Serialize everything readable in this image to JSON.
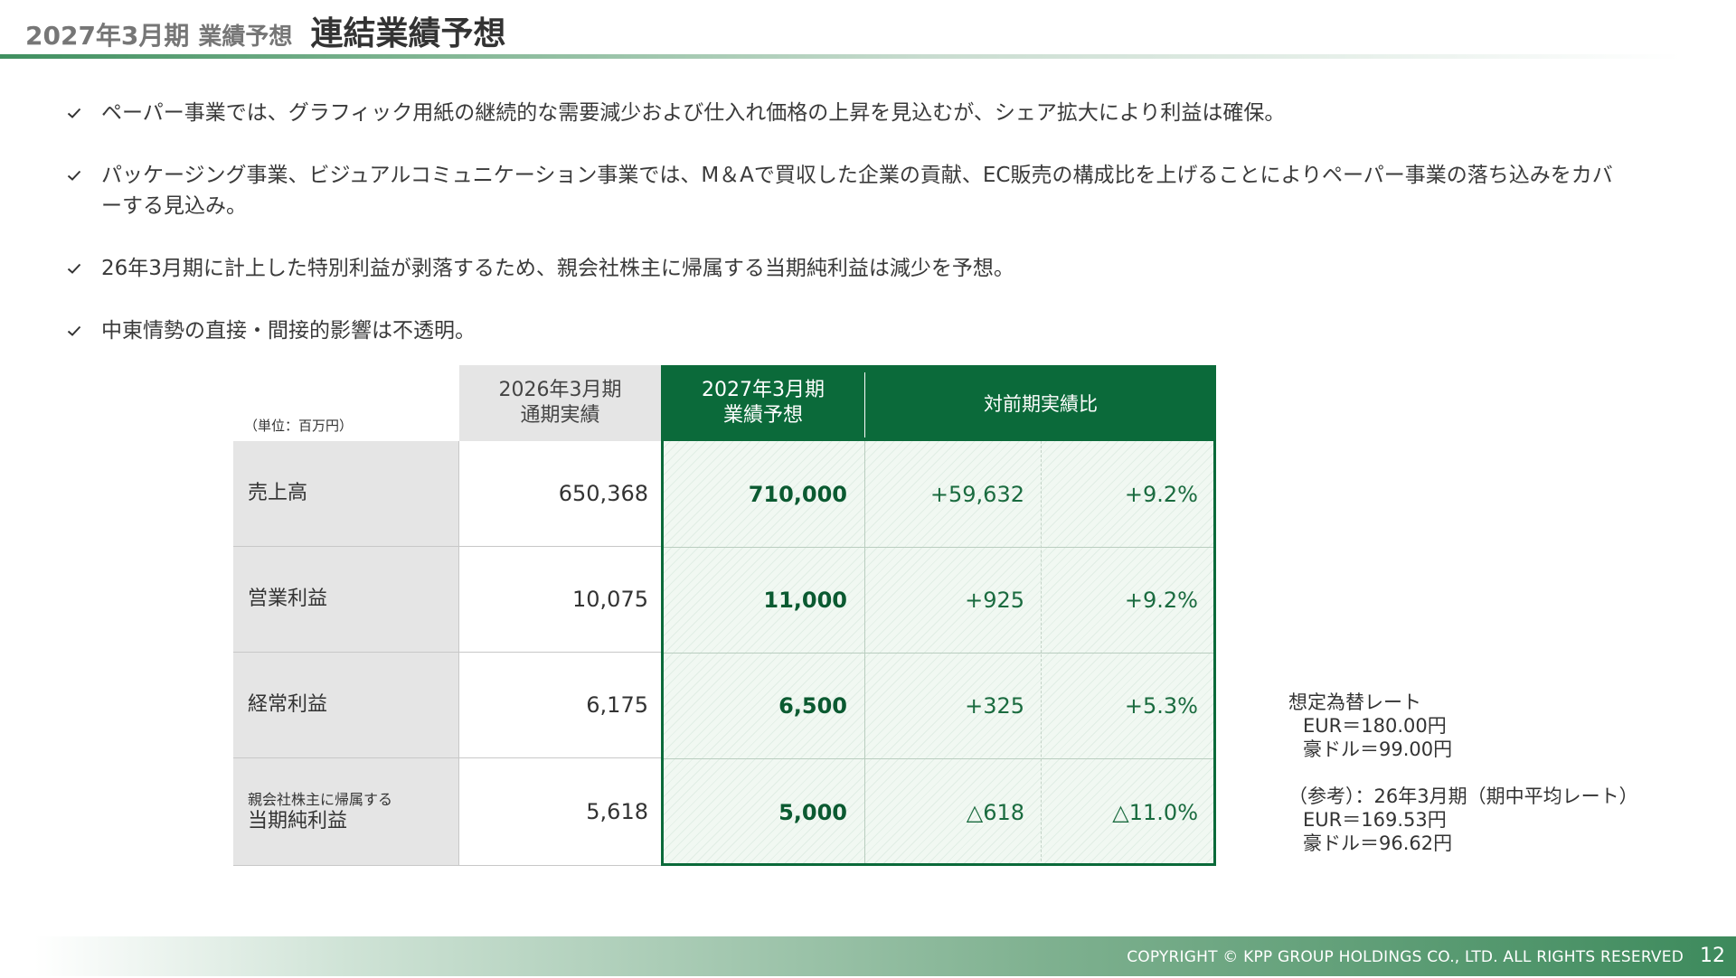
{
  "header": {
    "period": "2027年3月期",
    "section": "業績予想",
    "title": "連結業績予想"
  },
  "bullets": [
    "ペーパー事業では、グラフィック用紙の継続的な需要減少および仕入れ価格の上昇を見込むが、シェア拡大により利益は確保。",
    "パッケージング事業、ビジュアルコミュニケーション事業では、M＆Aで買収した企業の貢献、EC販売の構成比を上げることによりペーパー事業の落ち込みをカバーする見込み。",
    "26年3月期に計上した特別利益が剥落するため、親会社株主に帰属する当期純利益は減少を予想。",
    "中東情勢の直接・間接的影響は不透明。"
  ],
  "table": {
    "unit": "（単位：百万円）",
    "col_2026": {
      "line1": "2026年3月期",
      "line2": "通期実績"
    },
    "col_2027": {
      "line1": "2027年3月期",
      "line2": "業績予想"
    },
    "col_ratio": "対前期実績比",
    "rows": [
      {
        "label": "売上高",
        "v2026": "650,368",
        "v2027": "710,000",
        "diff": "+59,632",
        "pct": "+9.2%"
      },
      {
        "label": "営業利益",
        "v2026": "10,075",
        "v2027": "11,000",
        "diff": "+925",
        "pct": "+9.2%"
      },
      {
        "label": "経常利益",
        "v2026": "6,175",
        "v2027": "6,500",
        "diff": "+325",
        "pct": "+5.3%"
      },
      {
        "label_small": "親会社株主に帰属する",
        "label": "当期純利益",
        "v2026": "5,618",
        "v2027": "5,000",
        "diff": "△618",
        "pct": "△11.0%"
      }
    ]
  },
  "fx": {
    "title": "想定為替レート",
    "eur": "EUR＝180.00円",
    "aud": "豪ドル＝99.00円",
    "ref_title": "（参考）：26年3月期（期中平均レート）",
    "ref_eur": "EUR＝169.53円",
    "ref_aud": "豪ドル＝96.62円"
  },
  "footer": {
    "copyright": "COPYRIGHT © KPP GROUP HOLDINGS CO., LTD. ALL RIGHTS RESERVED",
    "page": "12"
  },
  "colors": {
    "brand_green": "#0b6a3a",
    "value_green": "#1a6b3f",
    "label_gray": "#e5e5e5"
  }
}
